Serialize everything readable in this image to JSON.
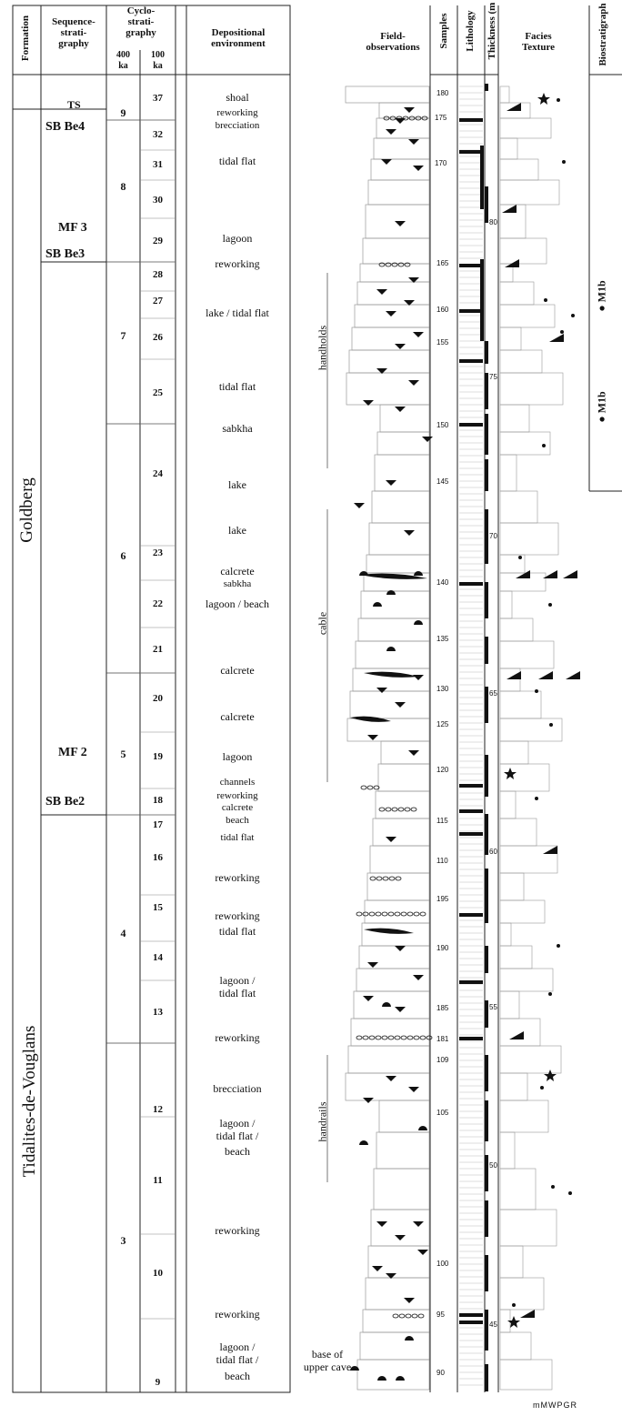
{
  "headers": {
    "formation": "Formation",
    "sequence": "Sequence-\nstrati-\ngraphy",
    "cyclo": "Cyclo-\nstrati-\ngraphy",
    "cyclo_400": "400\nka",
    "cyclo_100": "100\nka",
    "depositional": "Depositional\nenvironment",
    "field": "Field-\nobservations",
    "samples": "Samples",
    "lithology": "Lithology",
    "thickness": "Thickness (m",
    "facies": "Facies\nTexture",
    "biostrat": "Biostratigraph"
  },
  "formations": {
    "goldberg": "Goldberg",
    "tidalites": "Tidalites-de-Vouglans"
  },
  "sequence_labels": [
    "TS",
    "SB Be4",
    "MF 3",
    "SB Be3",
    "MF 2",
    "SB Be2"
  ],
  "cycles_400": [
    "9",
    "8",
    "7",
    "6",
    "5",
    "4",
    "3"
  ],
  "cycles_100": [
    "37",
    "32",
    "31",
    "30",
    "29",
    "28",
    "27",
    "26",
    "25",
    "24",
    "23",
    "22",
    "21",
    "20",
    "19",
    "18",
    "17",
    "16",
    "15",
    "14",
    "13",
    "12",
    "11",
    "10",
    "9"
  ],
  "environments": [
    "shoal",
    "reworking",
    "brecciation",
    "tidal flat",
    "lagoon",
    "reworking",
    "lake / tidal flat",
    "tidal flat",
    "sabkha",
    "lake",
    "lake",
    "calcrete",
    "sabkha",
    "lagoon / beach",
    "calcrete",
    "calcrete",
    "lagoon",
    "channels",
    "reworking",
    "calcrete",
    "beach",
    "tidal flat",
    "reworking",
    "reworking",
    "tidal flat",
    "lagoon /",
    "tidal flat",
    "reworking",
    "brecciation",
    "lagoon /",
    "tidal flat /",
    "beach",
    "reworking",
    "reworking",
    "lagoon /",
    "tidal flat /",
    "beach"
  ],
  "field_labels": {
    "handholds": "handholds",
    "cable": "cable",
    "handrails": "handrails",
    "base": "base of\nupper cave"
  },
  "sample_ticks": [
    "180",
    "175",
    "170",
    "80",
    "165",
    "160",
    "155",
    "75",
    "150",
    "145",
    "70",
    "140",
    "135",
    "130",
    "125",
    "65",
    "120",
    "115",
    "60",
    "110",
    "195",
    "190",
    "55",
    "185",
    "181",
    "109",
    "105",
    "50",
    "100",
    "95",
    "45",
    "90"
  ],
  "biostrat_labels": [
    "M1b",
    "M1b"
  ],
  "facies_axis": "mMWPGR"
}
